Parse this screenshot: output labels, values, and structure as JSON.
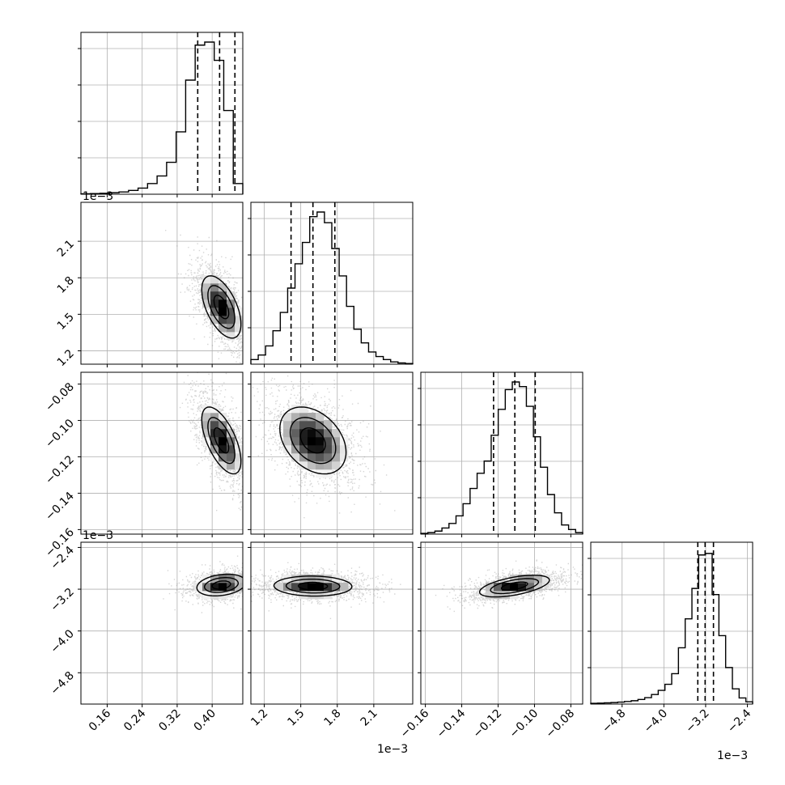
{
  "chart_data": {
    "type": "corner",
    "grid": true,
    "parameters": [
      {
        "range": [
          0.1,
          0.47
        ],
        "ticks": [
          0.16,
          0.24,
          0.32,
          0.4
        ],
        "tick_labels": [
          "0.16",
          "0.24",
          "0.32",
          "0.40"
        ],
        "offset_label": "1e−3"
      },
      {
        "range": [
          1.09,
          2.42
        ],
        "ticks": [
          1.2,
          1.5,
          1.8,
          2.1
        ],
        "tick_labels": [
          "1.2",
          "1.5",
          "1.8",
          "2.1"
        ],
        "offset_label": "1e−3"
      },
      {
        "range": [
          -0.1625,
          -0.0735
        ],
        "ticks": [
          -0.16,
          -0.14,
          -0.12,
          -0.1,
          -0.08
        ],
        "tick_labels": [
          "−0.16",
          "−0.14",
          "−0.12",
          "−0.10",
          "−0.08"
        ],
        "offset_label": ""
      },
      {
        "range": [
          -5.4,
          -2.3
        ],
        "ticks": [
          -4.8,
          -4.0,
          -3.2,
          -2.4
        ],
        "tick_labels": [
          "−4.8",
          "−4.0",
          "−3.2",
          "−2.4"
        ],
        "offset_label": "1e−3"
      }
    ],
    "diagonal_histograms": [
      {
        "counts": [
          0.003,
          0.004,
          0.006,
          0.01,
          0.015,
          0.025,
          0.04,
          0.07,
          0.12,
          0.21,
          0.41,
          0.75,
          0.98,
          1.0,
          0.88,
          0.55,
          0.07
        ],
        "quantiles": [
          0.367,
          0.417,
          0.452
        ]
      },
      {
        "counts": [
          0.03,
          0.06,
          0.12,
          0.22,
          0.34,
          0.5,
          0.66,
          0.8,
          0.97,
          1.0,
          0.93,
          0.76,
          0.58,
          0.38,
          0.23,
          0.14,
          0.08,
          0.05,
          0.03,
          0.015,
          0.008,
          0.004
        ],
        "quantiles": [
          1.42,
          1.6,
          1.78
        ]
      },
      {
        "counts": [
          0.005,
          0.01,
          0.02,
          0.04,
          0.07,
          0.12,
          0.2,
          0.3,
          0.4,
          0.48,
          0.65,
          0.82,
          0.95,
          1.0,
          0.97,
          0.84,
          0.64,
          0.44,
          0.26,
          0.14,
          0.06,
          0.03,
          0.01
        ],
        "quantiles": [
          -0.1225,
          -0.1108,
          -0.0996
        ]
      },
      {
        "counts": [
          0.005,
          0.006,
          0.008,
          0.01,
          0.013,
          0.017,
          0.022,
          0.03,
          0.042,
          0.063,
          0.09,
          0.13,
          0.2,
          0.37,
          0.56,
          0.76,
          0.98,
          0.99,
          0.72,
          0.45,
          0.24,
          0.1,
          0.04,
          0.015
        ],
        "quantiles": [
          -3.35,
          -3.21,
          -3.05
        ]
      }
    ],
    "pairs": [
      {
        "x": 0,
        "y": 1,
        "center": [
          0.421,
          1.56
        ],
        "sigma": [
          0.028,
          0.16
        ],
        "rho": -0.55
      },
      {
        "x": 0,
        "y": 2,
        "center": [
          0.421,
          -0.111
        ],
        "sigma": [
          0.028,
          0.0115
        ],
        "rho": -0.62
      },
      {
        "x": 1,
        "y": 2,
        "center": [
          1.6,
          -0.111
        ],
        "sigma": [
          0.17,
          0.0115
        ],
        "rho": -0.35
      },
      {
        "x": 0,
        "y": 3,
        "center": [
          0.421,
          -3.12
        ],
        "sigma": [
          0.035,
          0.13
        ],
        "rho": 0.25
      },
      {
        "x": 1,
        "y": 3,
        "center": [
          1.6,
          -3.14
        ],
        "sigma": [
          0.2,
          0.12
        ],
        "rho": -0.05
      },
      {
        "x": 2,
        "y": 3,
        "center": [
          -0.111,
          -3.14
        ],
        "sigma": [
          0.012,
          0.13
        ],
        "rho": 0.55
      }
    ]
  }
}
